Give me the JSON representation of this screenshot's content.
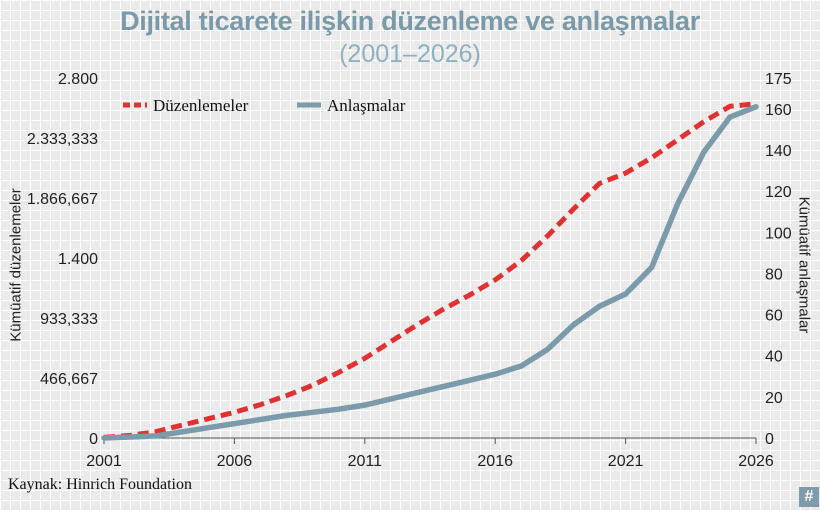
{
  "chart_data": {
    "type": "line",
    "title": "Dijital ticarete ilişkin düzenleme ve anlaşmalar",
    "subtitle": "(2001–2026)",
    "ylabel_left": "Kümüatif düzenlemeler",
    "ylabel_right": "Kümüatif anlaşmalar",
    "source": "Kaynak: Hinrich Foundation",
    "badge": "#",
    "xlim": [
      2001,
      2026
    ],
    "x_ticks": [
      "2001",
      "2006",
      "2011",
      "2016",
      "2021",
      "2026"
    ],
    "ylim_left": [
      0,
      2800
    ],
    "y_ticks_left": [
      "0",
      "466,667",
      "933,333",
      "1.400",
      "1.866,667",
      "2.333,333",
      "2.800"
    ],
    "ylim_right": [
      0,
      175
    ],
    "y_ticks_right": [
      "0",
      "20",
      "40",
      "60",
      "80",
      "100",
      "120",
      "140",
      "160",
      "175"
    ],
    "legend_position": "top-left",
    "grid": true,
    "series": [
      {
        "name": "Düzenlemeler",
        "axis": "left",
        "style": "dashed",
        "color": "#e03232",
        "x": [
          2001,
          2002,
          2003,
          2004,
          2005,
          2006,
          2007,
          2008,
          2009,
          2010,
          2011,
          2012,
          2013,
          2014,
          2015,
          2016,
          2017,
          2018,
          2019,
          2020,
          2021,
          2022,
          2023,
          2024,
          2025,
          2026
        ],
        "values": [
          5,
          20,
          50,
          100,
          150,
          200,
          260,
          330,
          410,
          510,
          620,
          750,
          880,
          1000,
          1110,
          1230,
          1380,
          1570,
          1780,
          1980,
          2060,
          2180,
          2320,
          2460,
          2580,
          2600
        ]
      },
      {
        "name": "Anlaşmalar",
        "axis": "right",
        "style": "solid",
        "color": "#7b9aaa",
        "x": [
          2001,
          2002,
          2003,
          2004,
          2005,
          2006,
          2007,
          2008,
          2009,
          2010,
          2011,
          2012,
          2013,
          2014,
          2015,
          2016,
          2017,
          2018,
          2019,
          2020,
          2021,
          2022,
          2023,
          2024,
          2025,
          2026
        ],
        "values": [
          0,
          0.5,
          1,
          3,
          5,
          7,
          9,
          11,
          12.5,
          14,
          16,
          19,
          22,
          25,
          28,
          31,
          35,
          43,
          55,
          64,
          70,
          83,
          114,
          139,
          156,
          161
        ]
      }
    ]
  }
}
